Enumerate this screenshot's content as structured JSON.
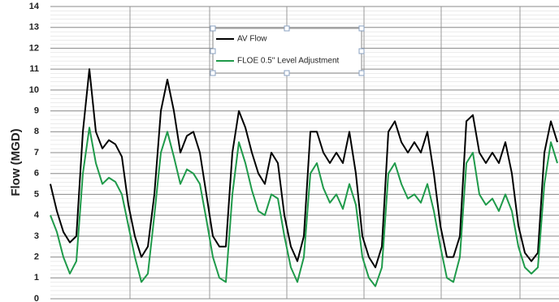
{
  "chart_data": {
    "type": "line",
    "y_label": "Flow (MGD)",
    "ylim": [
      0,
      14
    ],
    "yticks": [
      0,
      1,
      2,
      3,
      4,
      5,
      6,
      7,
      8,
      9,
      10,
      11,
      12,
      13,
      14
    ],
    "grid": true,
    "legend": "top-center",
    "series": [
      {
        "name": "AV Flow",
        "color": "#000000",
        "values": [
          5.5,
          4.2,
          3.2,
          2.7,
          3.0,
          8.0,
          11.0,
          8.0,
          7.2,
          7.6,
          7.4,
          6.8,
          4.5,
          3.0,
          2.0,
          2.5,
          5.0,
          9.0,
          10.5,
          9.0,
          7.0,
          7.8,
          8.0,
          7.0,
          5.0,
          3.0,
          2.5,
          2.5,
          7.0,
          9.0,
          8.2,
          7.0,
          6.0,
          5.5,
          7.0,
          6.5,
          4.0,
          2.5,
          1.8,
          3.0,
          8.0,
          8.0,
          7.0,
          6.5,
          7.0,
          6.5,
          8.0,
          6.0,
          3.0,
          2.0,
          1.5,
          2.5,
          8.0,
          8.5,
          7.5,
          7.0,
          7.5,
          7.0,
          8.0,
          6.0,
          3.5,
          2.0,
          2.0,
          3.0,
          8.5,
          8.8,
          7.0,
          6.5,
          7.0,
          6.5,
          7.5,
          6.0,
          3.5,
          2.2,
          1.8,
          2.2,
          7.0,
          8.5,
          7.5
        ]
      },
      {
        "name": "FLOE 0.5\" Level Adjustment",
        "color": "#1f9a4a",
        "values": [
          4.0,
          3.2,
          2.0,
          1.2,
          1.8,
          6.0,
          8.2,
          6.5,
          5.5,
          5.8,
          5.6,
          5.0,
          3.5,
          2.0,
          0.8,
          1.2,
          4.0,
          7.0,
          8.0,
          6.8,
          5.5,
          6.2,
          6.0,
          5.5,
          3.8,
          2.0,
          1.0,
          0.8,
          5.0,
          7.5,
          6.5,
          5.2,
          4.2,
          4.0,
          5.0,
          4.8,
          3.0,
          1.5,
          0.8,
          2.0,
          6.0,
          6.5,
          5.3,
          4.6,
          5.0,
          4.3,
          5.5,
          4.5,
          2.0,
          1.0,
          0.6,
          1.5,
          6.0,
          6.5,
          5.5,
          4.8,
          5.0,
          4.6,
          5.5,
          4.2,
          2.5,
          1.0,
          0.8,
          2.0,
          6.5,
          7.0,
          5.0,
          4.5,
          4.8,
          4.2,
          5.0,
          4.2,
          2.5,
          1.5,
          1.2,
          1.5,
          5.5,
          7.5,
          6.5
        ]
      }
    ]
  }
}
